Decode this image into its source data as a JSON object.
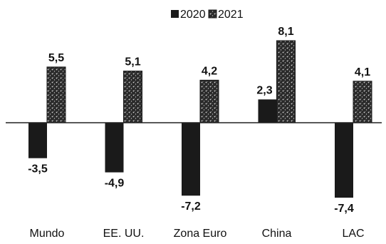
{
  "chart_data": {
    "type": "bar",
    "title": "",
    "xlabel": "",
    "ylabel": "",
    "categories": [
      "Mundo",
      "EE. UU.",
      "Zona Euro",
      "China",
      "LAC"
    ],
    "series": [
      {
        "name": "2020",
        "values": [
          -3.5,
          -4.9,
          -7.2,
          2.3,
          -7.4
        ],
        "labels": [
          "-3,5",
          "-4,9",
          "-7,2",
          "2,3",
          "-7,4"
        ],
        "color": "#1a1a1a",
        "pattern": "solid-dark"
      },
      {
        "name": "2021",
        "values": [
          5.5,
          5.1,
          4.2,
          8.1,
          4.1
        ],
        "labels": [
          "5,5",
          "5,1",
          "4,2",
          "8,1",
          "4,1"
        ],
        "color": "#3a3a3a",
        "pattern": "stipple"
      }
    ],
    "ylim": [
      -7.4,
      8.1
    ],
    "grid": false,
    "legend_position": "top-center",
    "axis": "horizontal zero line only"
  }
}
